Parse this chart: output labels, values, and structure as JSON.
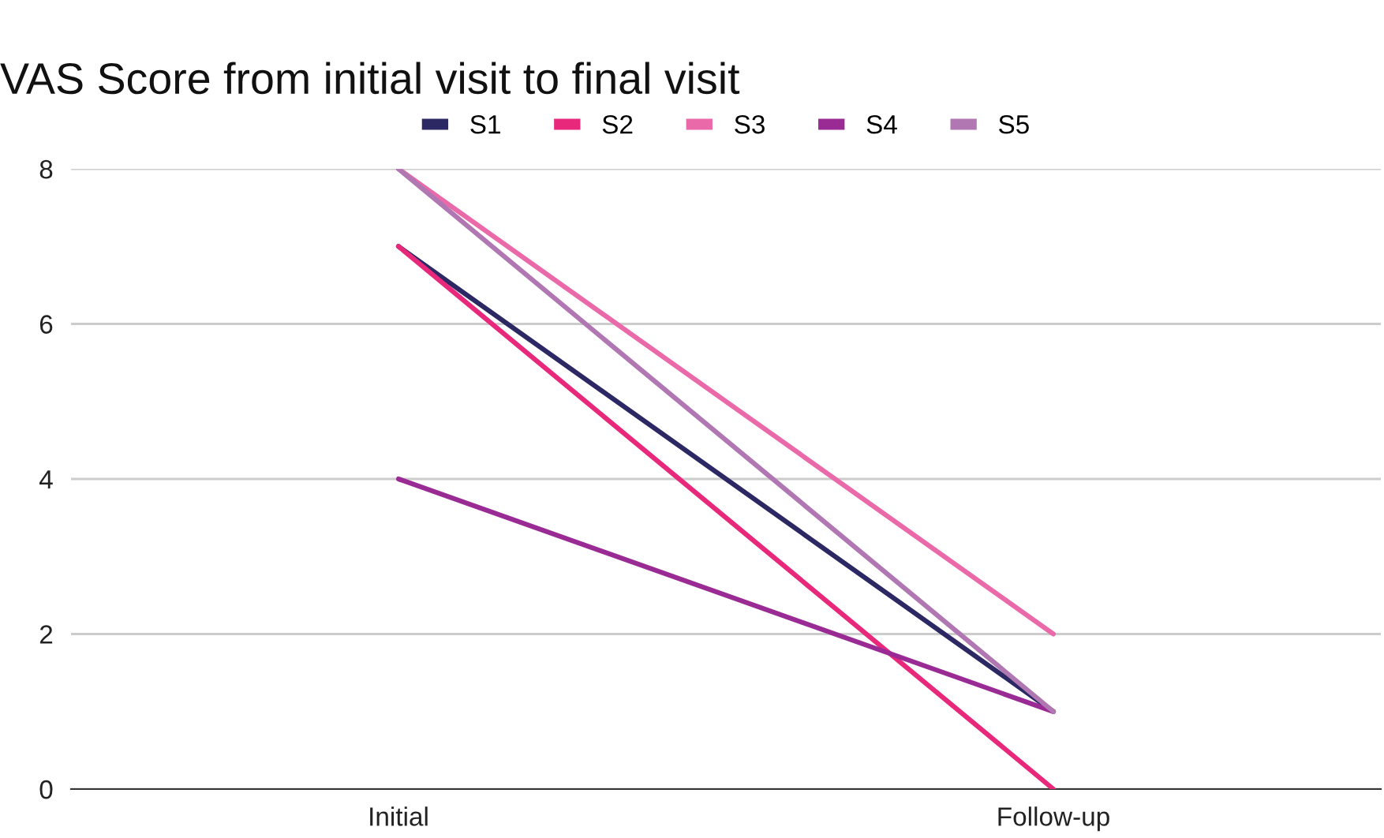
{
  "chart_data": {
    "type": "line",
    "title": "VAS Score from initial visit to final visit",
    "categories": [
      "Initial",
      "Follow-up"
    ],
    "series": [
      {
        "name": "S1",
        "color": "#2b2863",
        "values": [
          7,
          1
        ]
      },
      {
        "name": "S2",
        "color": "#e8297b",
        "values": [
          7,
          0
        ]
      },
      {
        "name": "S3",
        "color": "#ea69a9",
        "values": [
          8,
          2
        ]
      },
      {
        "name": "S4",
        "color": "#9a2a94",
        "values": [
          4,
          1
        ]
      },
      {
        "name": "S5",
        "color": "#b077b3",
        "values": [
          8,
          1
        ]
      }
    ],
    "ylim": [
      0,
      8
    ],
    "yticks": [
      0,
      2,
      4,
      6,
      8
    ],
    "grid": "y",
    "legend": "top",
    "marker": "none",
    "line_style": "solid"
  }
}
